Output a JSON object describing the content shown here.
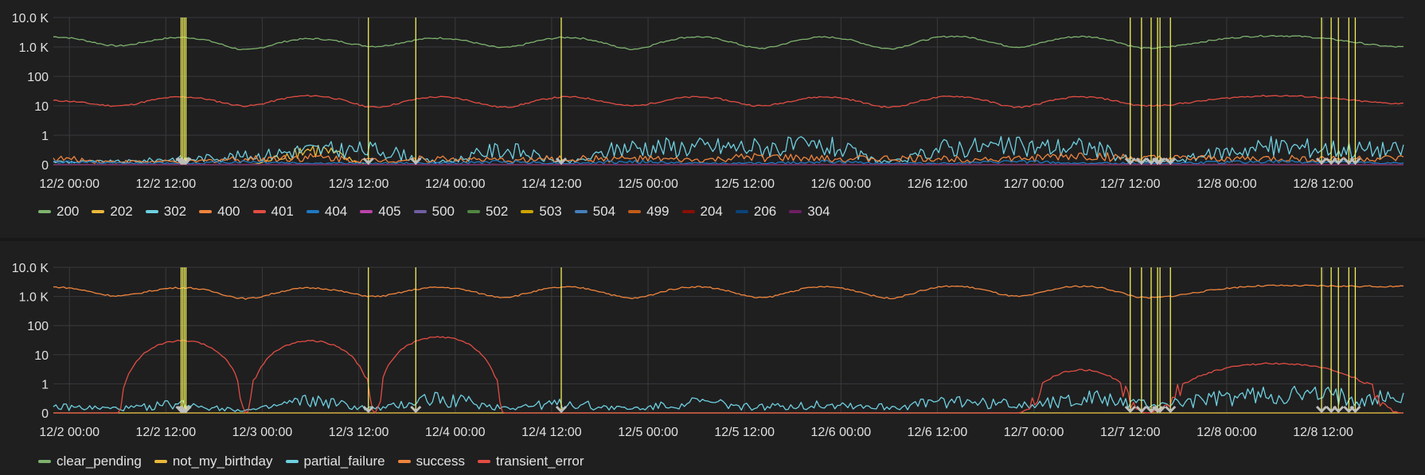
{
  "chart_data": [
    {
      "type": "line",
      "title": "",
      "y_scale": "log",
      "y_ticks": [
        "10.0 K",
        "1.0 K",
        "100",
        "10",
        "1",
        "0"
      ],
      "x_ticks": [
        "12/2 00:00",
        "12/2 12:00",
        "12/3 00:00",
        "12/3 12:00",
        "12/4 00:00",
        "12/4 12:00",
        "12/5 00:00",
        "12/5 12:00",
        "12/6 00:00",
        "12/6 12:00",
        "12/7 00:00",
        "12/7 12:00",
        "12/8 00:00",
        "12/8 12:00"
      ],
      "x_range_hours": [
        -2,
        166
      ],
      "ylim": [
        0,
        10000
      ],
      "grid": true,
      "legend_position": "bottom",
      "annotation_color": "#f2f05a",
      "annotation_hours": [
        13.9,
        14.1,
        14.3,
        14.5,
        37.2,
        43.1,
        61.2,
        132.0,
        133.4,
        134.6,
        135.4,
        135.7,
        137.0,
        155.8,
        157.0,
        157.9,
        159.2,
        160.0
      ],
      "series": [
        {
          "name": "200",
          "color": "#7eb26d",
          "values": [
            2200,
            1100,
            2100,
            800,
            1900,
            1050,
            2000,
            950,
            2100,
            850,
            2200,
            900,
            2150,
            880,
            2300,
            1000,
            2250,
            900,
            2400,
            1000
          ]
        },
        {
          "name": "202",
          "color": "#eab839",
          "values": [
            0,
            0,
            0,
            0,
            0.5,
            0,
            0,
            0,
            0,
            0,
            0,
            0,
            0,
            0,
            0,
            0,
            0,
            0,
            0,
            0
          ]
        },
        {
          "name": "302",
          "color": "#6ed0e0",
          "values": [
            0.1,
            0.1,
            0.2,
            0.3,
            0.5,
            0.5,
            0.1,
            0.5,
            0.1,
            0.6,
            0.6,
            0.6,
            0.6,
            0.1,
            0.6,
            0.6,
            0.6,
            0.1,
            0.6,
            0.5
          ]
        },
        {
          "name": "400",
          "color": "#ef843c",
          "values": [
            0.2,
            0.1,
            0.1,
            0.2,
            0.25,
            0.15,
            0.2,
            0.15,
            0.2,
            0.2,
            0.15,
            0.25,
            0.2,
            0.2,
            0.2,
            0.2,
            0.3,
            0.2,
            0.2,
            0.2
          ]
        },
        {
          "name": "401",
          "color": "#e24d42",
          "values": [
            15,
            10,
            20,
            10,
            22,
            9,
            20,
            9,
            20,
            10,
            20,
            10,
            20,
            9,
            21,
            9,
            20,
            10,
            22,
            12
          ]
        },
        {
          "name": "404",
          "color": "#1f78c1",
          "values": [
            0.1,
            0.05,
            0.05,
            0.1,
            0.05,
            0.05,
            0.05,
            0.1,
            0.05,
            0.1,
            0.05,
            0.05,
            0.1,
            0.05,
            0.05,
            0.1,
            0.05,
            0.05,
            0.1,
            0.05
          ]
        },
        {
          "name": "405",
          "color": "#ba43a9",
          "values": [
            0,
            0,
            0,
            0,
            0,
            0,
            0,
            0,
            0,
            0,
            0,
            0,
            0,
            0,
            0,
            0,
            0,
            0,
            0,
            0
          ]
        },
        {
          "name": "500",
          "color": "#705da0",
          "values": [
            0.01,
            0.01,
            0.01,
            0.01,
            0.01,
            0.01,
            0.01,
            0.01,
            0.01,
            0.01,
            0.01,
            0.01,
            0.01,
            0.01,
            0.01,
            0.01,
            0.01,
            0.01,
            0.01,
            0.01
          ]
        },
        {
          "name": "502",
          "color": "#508642",
          "values": [
            0,
            0,
            0,
            0,
            0,
            0,
            0,
            0,
            0,
            0,
            0,
            0,
            0,
            0,
            0,
            0,
            0,
            0,
            0,
            0
          ]
        },
        {
          "name": "503",
          "color": "#cca300",
          "values": [
            0,
            0,
            0,
            0,
            0,
            0,
            0,
            0,
            0,
            0,
            0,
            0,
            0,
            0,
            0,
            0,
            0,
            0,
            0,
            0
          ]
        },
        {
          "name": "504",
          "color": "#447ebc",
          "values": [
            0,
            0,
            0,
            0,
            0,
            0,
            0,
            0,
            0,
            0,
            0,
            0,
            0,
            0,
            0,
            0,
            0,
            0,
            0,
            0
          ]
        },
        {
          "name": "499",
          "color": "#c15c17",
          "values": [
            0,
            0,
            0,
            0,
            0,
            0,
            0,
            0,
            0,
            0,
            0,
            0,
            0,
            0,
            0,
            0,
            0,
            0,
            0,
            0
          ]
        },
        {
          "name": "204",
          "color": "#890f02",
          "values": [
            0,
            0,
            0,
            0,
            0,
            0,
            0,
            0,
            0,
            0,
            0,
            0,
            0,
            0,
            0,
            0,
            0,
            0,
            0,
            0
          ]
        },
        {
          "name": "206",
          "color": "#0a437c",
          "values": [
            0,
            0,
            0,
            0,
            0,
            0,
            0,
            0,
            0,
            0,
            0,
            0,
            0,
            0,
            0,
            0,
            0,
            0,
            0,
            0
          ]
        },
        {
          "name": "304",
          "color": "#6d1f62",
          "values": [
            0,
            0,
            0,
            0,
            0,
            0,
            0,
            0,
            0,
            0,
            0,
            0,
            0,
            0,
            0,
            0,
            0,
            0,
            0,
            0
          ]
        }
      ],
      "x_hours": [
        -2,
        6,
        14,
        22,
        30,
        38,
        46,
        54,
        62,
        70,
        78,
        86,
        94,
        102,
        110,
        118,
        126,
        134,
        150,
        166
      ]
    },
    {
      "type": "line",
      "title": "",
      "y_scale": "log",
      "y_ticks": [
        "10.0 K",
        "1.0 K",
        "100",
        "10",
        "1",
        "0"
      ],
      "x_ticks": [
        "12/2 00:00",
        "12/2 12:00",
        "12/3 00:00",
        "12/3 12:00",
        "12/4 00:00",
        "12/4 12:00",
        "12/5 00:00",
        "12/5 12:00",
        "12/6 00:00",
        "12/6 12:00",
        "12/7 00:00",
        "12/7 12:00",
        "12/8 00:00",
        "12/8 12:00"
      ],
      "x_range_hours": [
        -2,
        166
      ],
      "ylim": [
        0,
        10000
      ],
      "grid": true,
      "legend_position": "bottom",
      "annotation_color": "#f2f05a",
      "annotation_hours": [
        13.9,
        14.1,
        14.3,
        14.5,
        37.2,
        43.1,
        61.2,
        132.0,
        133.4,
        134.6,
        135.4,
        135.7,
        137.0,
        155.8,
        157.0,
        157.9,
        159.2,
        160.0
      ],
      "series": [
        {
          "name": "clear_pending",
          "color": "#7eb26d",
          "values": [
            0,
            0,
            0,
            0,
            0,
            0,
            0,
            0,
            0,
            0,
            0,
            0,
            0,
            0,
            0,
            0,
            0,
            0,
            0,
            0
          ]
        },
        {
          "name": "not_my_birthday",
          "color": "#eab839",
          "values": [
            0,
            0,
            0,
            0,
            0,
            0,
            0,
            0,
            0,
            0,
            0,
            0,
            0,
            0,
            0,
            0,
            0,
            0,
            0,
            0
          ]
        },
        {
          "name": "partial_failure",
          "color": "#6ed0e0",
          "values": [
            0.2,
            0.15,
            0.3,
            0.1,
            0.4,
            0.15,
            0.5,
            0.2,
            0.3,
            0.15,
            0.35,
            0.2,
            0.3,
            0.2,
            0.4,
            0.3,
            0.5,
            0.3,
            0.6,
            0.5
          ]
        },
        {
          "name": "success",
          "color": "#ef843c",
          "values": [
            2100,
            1050,
            2000,
            850,
            1950,
            1000,
            2050,
            950,
            2100,
            870,
            2150,
            900,
            2150,
            880,
            2250,
            1000,
            2250,
            900,
            2350,
            2200
          ]
        },
        {
          "name": "transient_error",
          "color": "#e24d42",
          "values": [
            0,
            0,
            30,
            0,
            30,
            0,
            40,
            0,
            0,
            0,
            0,
            0,
            0,
            0,
            0,
            0,
            3,
            0,
            5,
            0
          ]
        }
      ],
      "x_hours": [
        -2,
        6,
        14,
        22,
        30,
        38,
        46,
        54,
        62,
        70,
        78,
        86,
        94,
        102,
        110,
        118,
        126,
        134,
        150,
        166
      ]
    }
  ]
}
